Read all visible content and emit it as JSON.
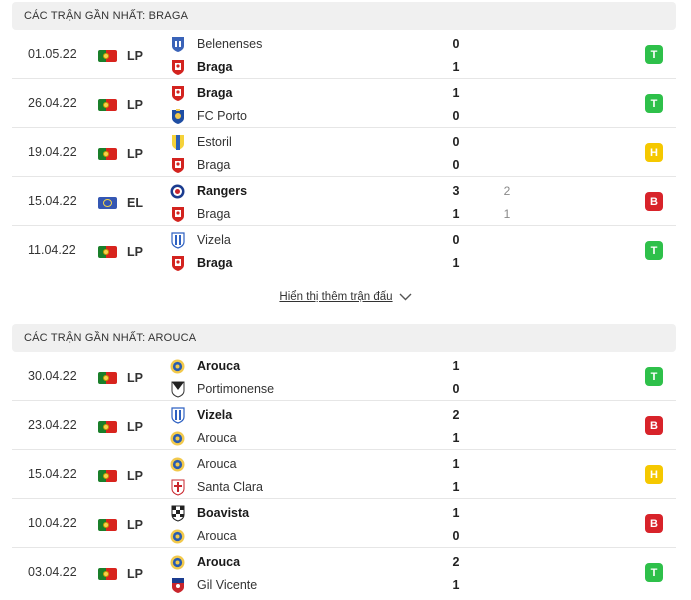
{
  "braga": {
    "header": "CÁC TRẬN GẦN NHẤT: BRAGA",
    "matches": [
      {
        "date": "01.05.22",
        "competition": "LP",
        "flag": "portugal",
        "home": {
          "name": "Belenenses",
          "badge": "belenenses-badge",
          "win": false
        },
        "away": {
          "name": "Braga",
          "badge": "braga-badge",
          "win": true
        },
        "home_score": "0",
        "away_score": "1",
        "result": "T"
      },
      {
        "date": "26.04.22",
        "competition": "LP",
        "flag": "portugal",
        "home": {
          "name": "Braga",
          "badge": "braga-badge",
          "win": true
        },
        "away": {
          "name": "FC Porto",
          "badge": "porto-badge",
          "win": false
        },
        "home_score": "1",
        "away_score": "0",
        "result": "T"
      },
      {
        "date": "19.04.22",
        "competition": "LP",
        "flag": "portugal",
        "home": {
          "name": "Estoril",
          "badge": "estoril-badge",
          "win": false
        },
        "away": {
          "name": "Braga",
          "badge": "braga-badge",
          "win": false
        },
        "home_score": "0",
        "away_score": "0",
        "result": "H"
      },
      {
        "date": "15.04.22",
        "competition": "EL",
        "flag": "europe",
        "home": {
          "name": "Rangers",
          "badge": "rangers-badge",
          "win": true
        },
        "away": {
          "name": "Braga",
          "badge": "braga-badge",
          "win": false
        },
        "home_score": "3",
        "away_score": "1",
        "home_sub": "2",
        "away_sub": "1",
        "result": "B"
      },
      {
        "date": "11.04.22",
        "competition": "LP",
        "flag": "portugal",
        "home": {
          "name": "Vizela",
          "badge": "vizela-badge",
          "win": false
        },
        "away": {
          "name": "Braga",
          "badge": "braga-badge",
          "win": true
        },
        "home_score": "0",
        "away_score": "1",
        "result": "T"
      }
    ]
  },
  "more_link": "Hiển thị thêm trận đấu",
  "arouca": {
    "header": "CÁC TRẬN GẦN NHẤT: AROUCA",
    "matches": [
      {
        "date": "30.04.22",
        "competition": "LP",
        "flag": "portugal",
        "home": {
          "name": "Arouca",
          "badge": "arouca-badge",
          "win": true
        },
        "away": {
          "name": "Portimonense",
          "badge": "portimonense-badge",
          "win": false
        },
        "home_score": "1",
        "away_score": "0",
        "result": "T"
      },
      {
        "date": "23.04.22",
        "competition": "LP",
        "flag": "portugal",
        "home": {
          "name": "Vizela",
          "badge": "vizela-badge",
          "win": true
        },
        "away": {
          "name": "Arouca",
          "badge": "arouca-badge",
          "win": false
        },
        "home_score": "2",
        "away_score": "1",
        "result": "B"
      },
      {
        "date": "15.04.22",
        "competition": "LP",
        "flag": "portugal",
        "home": {
          "name": "Arouca",
          "badge": "arouca-badge",
          "win": false
        },
        "away": {
          "name": "Santa Clara",
          "badge": "santa-clara-badge",
          "win": false
        },
        "home_score": "1",
        "away_score": "1",
        "result": "H"
      },
      {
        "date": "10.04.22",
        "competition": "LP",
        "flag": "portugal",
        "home": {
          "name": "Boavista",
          "badge": "boavista-badge",
          "win": true
        },
        "away": {
          "name": "Arouca",
          "badge": "arouca-badge",
          "win": false
        },
        "home_score": "1",
        "away_score": "0",
        "result": "B"
      },
      {
        "date": "03.04.22",
        "competition": "LP",
        "flag": "portugal",
        "home": {
          "name": "Arouca",
          "badge": "arouca-badge",
          "win": true
        },
        "away": {
          "name": "Gil Vicente",
          "badge": "gil-vicente-badge",
          "win": false
        },
        "home_score": "2",
        "away_score": "1",
        "result": "T"
      }
    ]
  },
  "colors": {
    "win": "#2ec04a",
    "loss": "#d8232a",
    "draw": "#f5c800",
    "header_bg": "#f0f0f0"
  }
}
